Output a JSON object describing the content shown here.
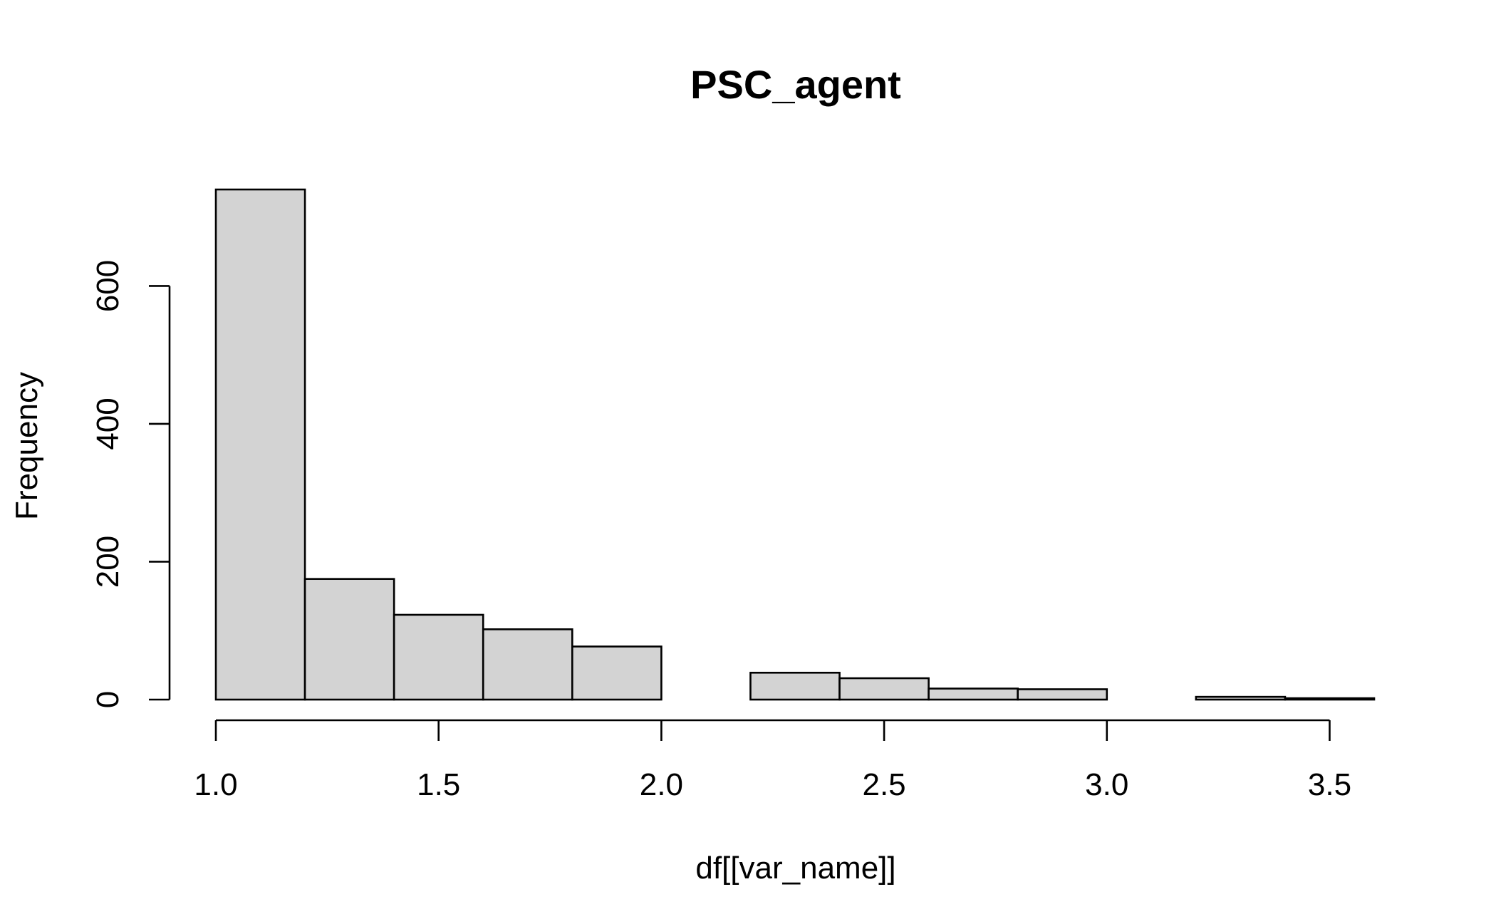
{
  "chart_data": {
    "type": "bar",
    "title": "PSC_agent",
    "xlabel": "df[[var_name]]",
    "ylabel": "Frequency",
    "bin_edges": [
      1.0,
      1.2,
      1.4,
      1.6,
      1.8,
      2.0,
      2.2,
      2.4,
      2.6,
      2.8,
      3.0,
      3.2,
      3.4,
      3.6
    ],
    "values": [
      740,
      175,
      123,
      102,
      77,
      0,
      39,
      31,
      16,
      15,
      0,
      4,
      2
    ],
    "xlim": [
      1.0,
      3.6
    ],
    "ylim": [
      0,
      740
    ],
    "x_ticks": [
      "1.0",
      "1.5",
      "2.0",
      "2.5",
      "3.0",
      "3.5"
    ],
    "y_ticks": [
      "0",
      "200",
      "400",
      "600"
    ],
    "grid": false,
    "legend": "none",
    "bar_color": "#d3d3d3"
  }
}
